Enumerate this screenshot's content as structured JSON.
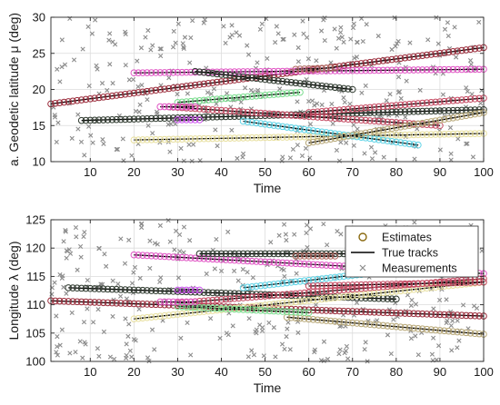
{
  "chart_data": [
    {
      "type": "scatter",
      "xlabel": "Time",
      "ylabel": "a. Geodetic  latitude μ (deg)",
      "xlim": [
        1,
        100
      ],
      "ylim": [
        10,
        30
      ],
      "xticks": [
        "10",
        "20",
        "30",
        "40",
        "50",
        "60",
        "70",
        "80",
        "90",
        "100"
      ],
      "yticks": [
        "10",
        "15",
        "20",
        "25",
        "30"
      ],
      "grid": true,
      "tracks": [
        {
          "color": "#9b2d3c",
          "x": [
            1,
            100
          ],
          "y": [
            18.0,
            25.8
          ]
        },
        {
          "color": "#2f3a2f",
          "x": [
            8,
            100
          ],
          "y": [
            15.7,
            17.2
          ]
        },
        {
          "color": "#e055c4",
          "x": [
            20,
            100
          ],
          "y": [
            22.3,
            22.8
          ]
        },
        {
          "color": "#2f3a2f",
          "x": [
            34,
            70
          ],
          "y": [
            22.5,
            20.0
          ]
        },
        {
          "color": "#7adc8e",
          "x": [
            30,
            58
          ],
          "y": [
            18.2,
            19.6
          ]
        },
        {
          "color": "#c44a62",
          "x": [
            28,
            90
          ],
          "y": [
            17.6,
            15.0
          ]
        },
        {
          "color": "#c44a62",
          "x": [
            60,
            100
          ],
          "y": [
            16.8,
            18.8
          ]
        },
        {
          "color": "#e8e0a0",
          "x": [
            20,
            100
          ],
          "y": [
            13.0,
            13.9
          ]
        },
        {
          "color": "#5fd3e6",
          "x": [
            45,
            85
          ],
          "y": [
            15.6,
            12.3
          ]
        },
        {
          "color": "#b8a878",
          "x": [
            60,
            100
          ],
          "y": [
            12.6,
            16.8
          ]
        },
        {
          "color": "#b06a62",
          "x": [
            57,
            66
          ],
          "y": [
            22.8,
            23.0
          ]
        },
        {
          "color": "#cc55ee",
          "x": [
            30,
            35
          ],
          "y": [
            15.8,
            15.8
          ]
        },
        {
          "color": "#e055c4",
          "x": [
            26,
            34
          ],
          "y": [
            17.6,
            17.6
          ]
        }
      ]
    },
    {
      "type": "scatter",
      "xlabel": "Time",
      "ylabel": "Longitude λ (deg)",
      "xlim": [
        1,
        100
      ],
      "ylim": [
        100,
        125
      ],
      "xticks": [
        "10",
        "20",
        "30",
        "40",
        "50",
        "60",
        "70",
        "80",
        "90",
        "100"
      ],
      "yticks": [
        "100",
        "105",
        "110",
        "115",
        "120",
        "125"
      ],
      "grid": true,
      "legend": {
        "position": "top-right",
        "entries": [
          "Estimates",
          "True tracks",
          "Measurements"
        ]
      },
      "tracks": [
        {
          "color": "#9b2d3c",
          "x": [
            1,
            100
          ],
          "y": [
            110.7,
            108.0
          ]
        },
        {
          "color": "#2f3a2f",
          "x": [
            5,
            80
          ],
          "y": [
            113.0,
            111.0
          ]
        },
        {
          "color": "#e055c4",
          "x": [
            20,
            100
          ],
          "y": [
            118.8,
            115.5
          ]
        },
        {
          "color": "#2f3a2f",
          "x": [
            35,
            70
          ],
          "y": [
            119.0,
            119.0
          ]
        },
        {
          "color": "#b06a62",
          "x": [
            57,
            66
          ],
          "y": [
            118.6,
            118.6
          ]
        },
        {
          "color": "#e8e0a0",
          "x": [
            20,
            100
          ],
          "y": [
            107.5,
            114.0
          ]
        },
        {
          "color": "#b8a878",
          "x": [
            55,
            100
          ],
          "y": [
            107.8,
            104.8
          ]
        },
        {
          "color": "#5fd3e6",
          "x": [
            45,
            85
          ],
          "y": [
            113.0,
            116.5
          ]
        },
        {
          "color": "#c44a62",
          "x": [
            30,
            100
          ],
          "y": [
            110.3,
            114.6
          ]
        },
        {
          "color": "#7adc8e",
          "x": [
            30,
            60
          ],
          "y": [
            109.7,
            108.6
          ]
        },
        {
          "color": "#c44a62",
          "x": [
            60,
            100
          ],
          "y": [
            113.3,
            114.0
          ]
        },
        {
          "color": "#cc55ee",
          "x": [
            30,
            35
          ],
          "y": [
            112.6,
            112.6
          ]
        },
        {
          "color": "#e055c4",
          "x": [
            26,
            34
          ],
          "y": [
            110.5,
            110.5
          ]
        }
      ]
    }
  ],
  "colors": {
    "measurement": "#8c8c8c",
    "true_track": "#000000",
    "axes": "#262626",
    "grid": "#dcdcdc"
  }
}
